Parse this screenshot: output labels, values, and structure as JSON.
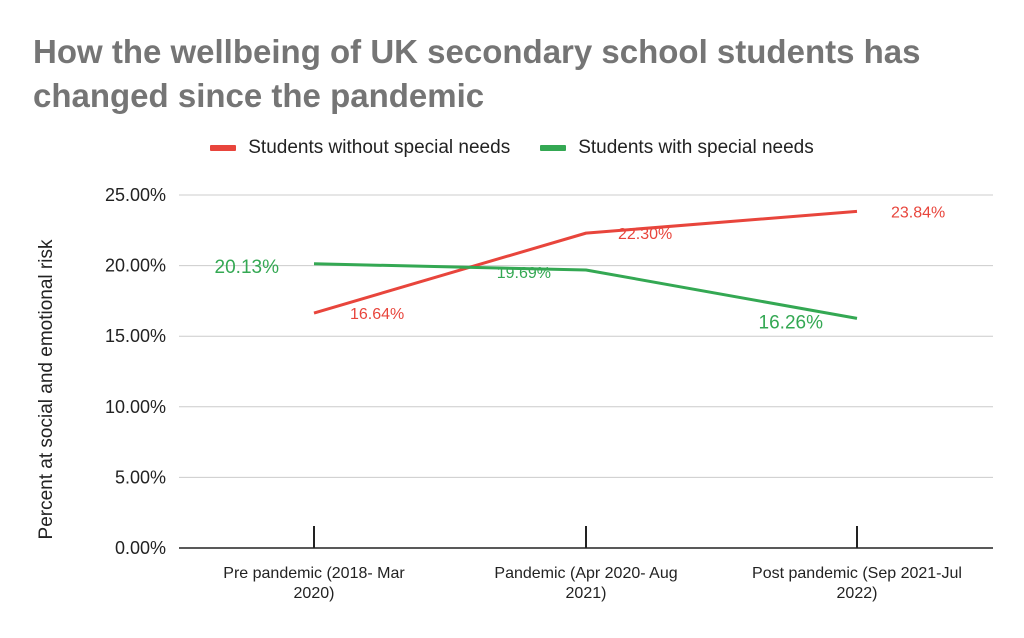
{
  "chart_data": {
    "type": "line",
    "title": "How the wellbeing of UK secondary school students has changed since the pandemic",
    "ylabel": "Percent at social and emotional risk",
    "xlabel": "",
    "ylim": [
      0,
      25
    ],
    "yticks": [
      "0.00%",
      "5.00%",
      "10.00%",
      "15.00%",
      "20.00%",
      "25.00%"
    ],
    "categories": [
      [
        "Pre pandemic (2018- Mar",
        "2020)"
      ],
      [
        "Pandemic (Apr 2020- Aug",
        "2021)"
      ],
      [
        "Post pandemic (Sep 2021-Jul",
        "2022)"
      ]
    ],
    "series": [
      {
        "name": "Students without special needs",
        "color": "#e8453c",
        "values": [
          16.64,
          22.3,
          23.84
        ],
        "labels": [
          "16.64%",
          "22.30%",
          "23.84%"
        ]
      },
      {
        "name": "Students with special needs",
        "color": "#34a853",
        "values": [
          20.13,
          19.69,
          16.26
        ],
        "labels": [
          "20.13%",
          "19.69%",
          "16.26%"
        ]
      }
    ],
    "grid": true,
    "legend_position": "top"
  }
}
